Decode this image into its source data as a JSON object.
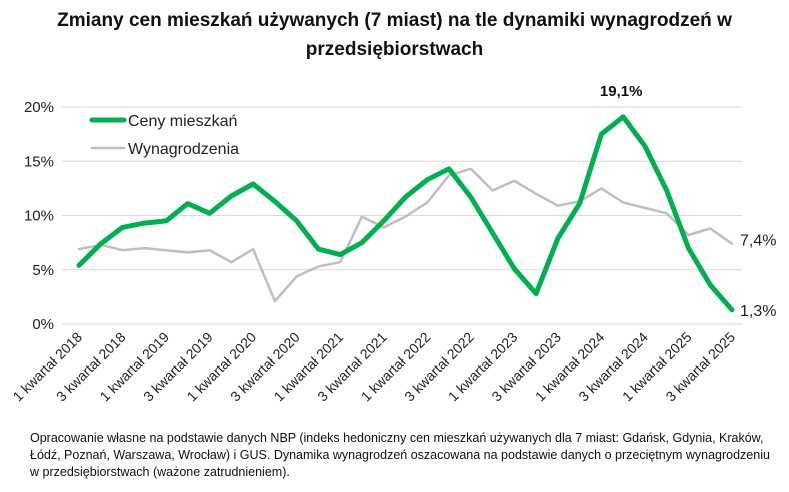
{
  "chart_data": {
    "type": "line",
    "title": "Zmiany cen mieszkań używanych (7 miast) na tle dynamiki wynagrodzeń w przedsiębiorstwach",
    "xlabel": "",
    "ylabel": "",
    "ylim": [
      0,
      20
    ],
    "yticks": [
      "0%",
      "5%",
      "10%",
      "15%",
      "20%"
    ],
    "grid": true,
    "legend_position": "top-left",
    "x": [
      "1 kwartał 2018",
      "2 kwartał 2018",
      "3 kwartał 2018",
      "4 kwartał 2018",
      "1 kwartał 2019",
      "2 kwartał 2019",
      "3 kwartał 2019",
      "4 kwartał 2019",
      "1 kwartał 2020",
      "2 kwartał 2020",
      "3 kwartał 2020",
      "4 kwartał 2020",
      "1 kwartał 2021",
      "2 kwartał 2021",
      "3 kwartał 2021",
      "4 kwartał 2021",
      "1 kwartał 2022",
      "2 kwartał 2022",
      "3 kwartał 2022",
      "4 kwartał 2022",
      "1 kwartał 2023",
      "2 kwartał 2023",
      "3 kwartał 2023",
      "4 kwartał 2023",
      "1 kwartał 2024",
      "2 kwartał 2024",
      "3 kwartał 2024",
      "4 kwartał 2024",
      "1 kwartał 2025",
      "2 kwartał 2025",
      "3 kwartał 2025"
    ],
    "xtick_labels": [
      "1 kwartał 2018",
      "3 kwartał 2018",
      "1 kwartał 2019",
      "3 kwartał 2019",
      "1 kwartał 2020",
      "3 kwartał 2020",
      "1 kwartał 2021",
      "3 kwartał 2021",
      "1 kwartał 2022",
      "3 kwartał 2022",
      "1 kwartał 2023",
      "3 kwartał 2023",
      "1 kwartał 2024",
      "3 kwartał 2024",
      "1 kwartał 2025",
      "3 kwartał 2025"
    ],
    "series": [
      {
        "name": "Ceny mieszkań",
        "color": "#00b050",
        "values": [
          5.4,
          7.4,
          8.9,
          9.3,
          9.5,
          11.1,
          10.2,
          11.8,
          12.9,
          11.3,
          9.5,
          6.9,
          6.4,
          7.5,
          9.5,
          11.7,
          13.3,
          14.3,
          11.7,
          8.4,
          5.1,
          2.8,
          7.9,
          11.1,
          17.5,
          19.1,
          16.4,
          12.3,
          7.0,
          3.6,
          1.3
        ]
      },
      {
        "name": "Wynagrodzenia",
        "color": "#bfbfbf",
        "values": [
          6.9,
          7.3,
          6.8,
          7.0,
          6.8,
          6.6,
          6.8,
          5.7,
          6.9,
          2.1,
          4.4,
          5.3,
          5.7,
          9.9,
          8.9,
          9.9,
          11.2,
          13.7,
          14.3,
          12.3,
          13.2,
          12.0,
          10.9,
          11.3,
          12.5,
          11.2,
          10.7,
          10.2,
          8.2,
          8.8,
          7.4
        ]
      }
    ],
    "annotations": {
      "peak": "19,1%",
      "last_prices": "1,3%",
      "last_wages": "7,4%"
    }
  },
  "source_note": "Opracowanie własne na podstawie danych NBP (indeks hedoniczny cen mieszkań używanych dla 7 miast: Gdańsk, Gdynia, Kraków, Łódź, Poznań, Warszawa, Wrocław) i GUS. Dynamika wynagrodzeń oszacowana na podstawie danych o przeciętnym wynagrodzeniu w przedsiębiorstwach (ważone zatrudnieniem)."
}
